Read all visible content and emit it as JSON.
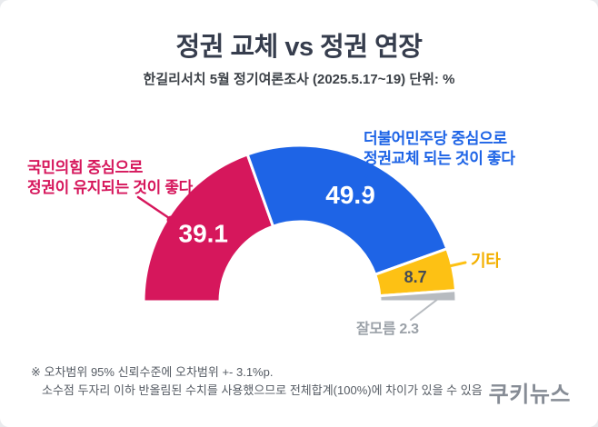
{
  "header": {
    "title": "정권 교체 vs 정권 연장",
    "subtitle": "한길리서치 5월 정기여론조사 (2025.5.17~19) 단위: %"
  },
  "chart_data": {
    "type": "pie",
    "variant": "half-donut",
    "unit": "%",
    "total": 100,
    "direction": "left-to-right",
    "segments": [
      {
        "label": "국민의힘 중심으로 정권이 유지되는 것이 좋다",
        "value": 39.1,
        "color": "#d6175c",
        "value_text_color": "#ffffff",
        "value_inside": true
      },
      {
        "label": "더불어민주당 중심으로 정권교체 되는 것이 좋다",
        "value": 49.9,
        "color": "#1e64e6",
        "value_text_color": "#ffffff",
        "value_inside": true
      },
      {
        "label": "기타",
        "value": 8.7,
        "color": "#fdc114",
        "value_text_color": "#454b55",
        "value_inside": true
      },
      {
        "label": "잘모름",
        "value": 2.3,
        "color": "#b7bbc0",
        "value_text_color": null,
        "value_inside": false
      }
    ]
  },
  "callouts": {
    "left": {
      "line1": "국민의힘 중심으로",
      "line2": "정권이 유지되는 것이 좋다",
      "color": "#d6175c"
    },
    "right": {
      "line1": "더불어민주당 중심으로",
      "line2": "정권교체 되는 것이 좋다",
      "color": "#1e64e6"
    },
    "etc": {
      "label": "기타",
      "color": "#f3b000"
    },
    "unknown": {
      "label": "잘모름 2.3",
      "color": "#9ba1a8"
    }
  },
  "footnotes": {
    "line1": "※ 오차범위 95% 신뢰수준에 오차범위 +- 3.1%p.",
    "line2": "소수점 두자리 이하 반올림된 수치를 사용했으므로 전체합계(100%)에 차이가 있을 수 있음"
  },
  "logo": {
    "text": "쿠키뉴스"
  }
}
